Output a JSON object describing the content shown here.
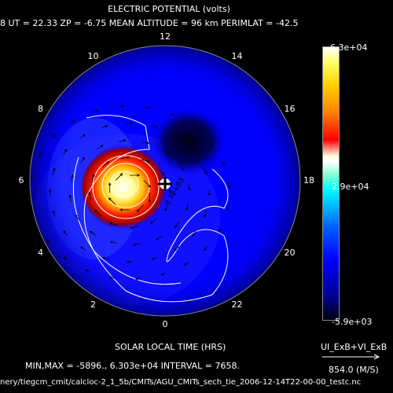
{
  "title": "ELECTRIC POTENTIAL (volts)",
  "subtitle": "8  UT = 22.33  ZP =  -6.75  MEAN ALTITUDE =  96 km  PERIMLAT = -42.5",
  "hour_labels": [
    "12",
    "14",
    "16",
    "18",
    "20",
    "22",
    "0",
    "2",
    "4",
    "6",
    "8",
    "10"
  ],
  "xlabel": "SOLAR LOCAL TIME (HRS)",
  "stats": "MIN,MAX =     -5896.,  6.303e+04  INTERVAL =      7658.",
  "footer": "nery/tiegcm_cmit/calcloc-2_1_5b/CMITs/AGU_CMITs_sech_tie_2006-12-14T22-00-00_testc.nc",
  "colorbar": {
    "max_label": "6.3e+04",
    "mid_label": "2.9e+04",
    "min_label": "-5.9e+03"
  },
  "vector_legend": "UI_ExB+VI_ExB",
  "reference_vector": "854.0 (M/S)",
  "annotation": "3.7e+03",
  "colors": {
    "background": "#000000",
    "field": "#0000ff",
    "contour": "#ffffff"
  }
}
